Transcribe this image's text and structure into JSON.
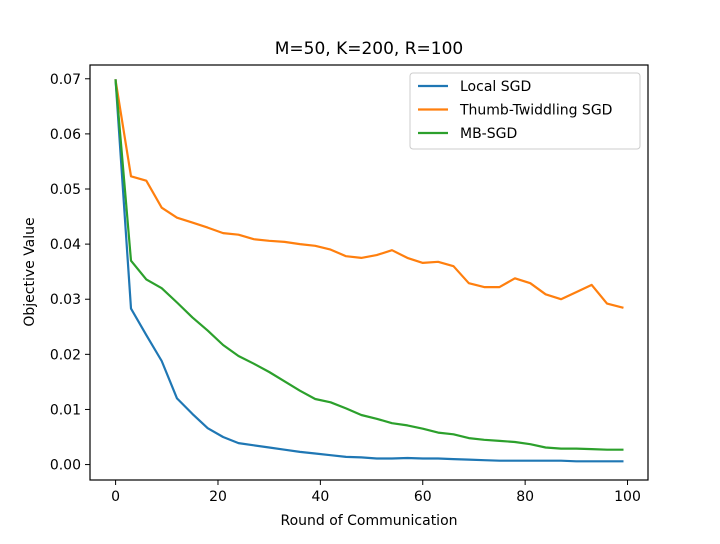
{
  "chart_data": {
    "type": "line",
    "title": "M=50, K=200, R=100",
    "xlabel": "Round of Communication",
    "ylabel": "Objective Value",
    "xlim": [
      -5,
      104
    ],
    "ylim": [
      -0.0028,
      0.0725
    ],
    "xticks": [
      0,
      20,
      40,
      60,
      80,
      100
    ],
    "xtick_labels": [
      "0",
      "20",
      "40",
      "60",
      "80",
      "100"
    ],
    "yticks": [
      0.0,
      0.01,
      0.02,
      0.03,
      0.04,
      0.05,
      0.06,
      0.07
    ],
    "ytick_labels": [
      "0.00",
      "0.01",
      "0.02",
      "0.03",
      "0.04",
      "0.05",
      "0.06",
      "0.07"
    ],
    "grid": false,
    "legend_position": "top-right",
    "x": [
      0,
      3,
      6,
      9,
      12,
      15,
      18,
      21,
      24,
      27,
      30,
      33,
      36,
      39,
      42,
      45,
      48,
      51,
      54,
      57,
      60,
      63,
      66,
      69,
      72,
      75,
      78,
      81,
      84,
      87,
      90,
      93,
      96,
      99
    ],
    "series": [
      {
        "name": "Local SGD",
        "color": "#1f77b4",
        "values": [
          0.0697,
          0.0283,
          0.0235,
          0.0188,
          0.012,
          0.0092,
          0.0066,
          0.005,
          0.0039,
          0.0035,
          0.0031,
          0.0027,
          0.0023,
          0.002,
          0.0017,
          0.0014,
          0.0013,
          0.0011,
          0.0011,
          0.0012,
          0.0011,
          0.0011,
          0.001,
          0.0009,
          0.0008,
          0.0007,
          0.0007,
          0.0007,
          0.0007,
          0.0007,
          0.0006,
          0.0006,
          0.0006,
          0.0006
        ]
      },
      {
        "name": "Thumb-Twiddling SGD",
        "color": "#ff7f0e",
        "values": [
          0.0697,
          0.0523,
          0.0515,
          0.0466,
          0.0448,
          0.0439,
          0.043,
          0.042,
          0.0417,
          0.0409,
          0.0406,
          0.0404,
          0.04,
          0.0397,
          0.039,
          0.0378,
          0.0375,
          0.038,
          0.0389,
          0.0375,
          0.0366,
          0.0368,
          0.036,
          0.0329,
          0.0322,
          0.0322,
          0.0338,
          0.0329,
          0.0309,
          0.03,
          0.0313,
          0.0326,
          0.0292,
          0.0285
        ]
      },
      {
        "name": "MB-SGD",
        "color": "#2ca02c",
        "values": [
          0.0697,
          0.037,
          0.0336,
          0.032,
          0.0294,
          0.0267,
          0.0243,
          0.0217,
          0.0197,
          0.0183,
          0.0168,
          0.0151,
          0.0134,
          0.0119,
          0.0113,
          0.0102,
          0.009,
          0.0083,
          0.0075,
          0.0071,
          0.0065,
          0.0058,
          0.0055,
          0.0048,
          0.0045,
          0.0043,
          0.0041,
          0.0037,
          0.0031,
          0.0029,
          0.0029,
          0.0028,
          0.0027,
          0.0027
        ]
      }
    ]
  }
}
